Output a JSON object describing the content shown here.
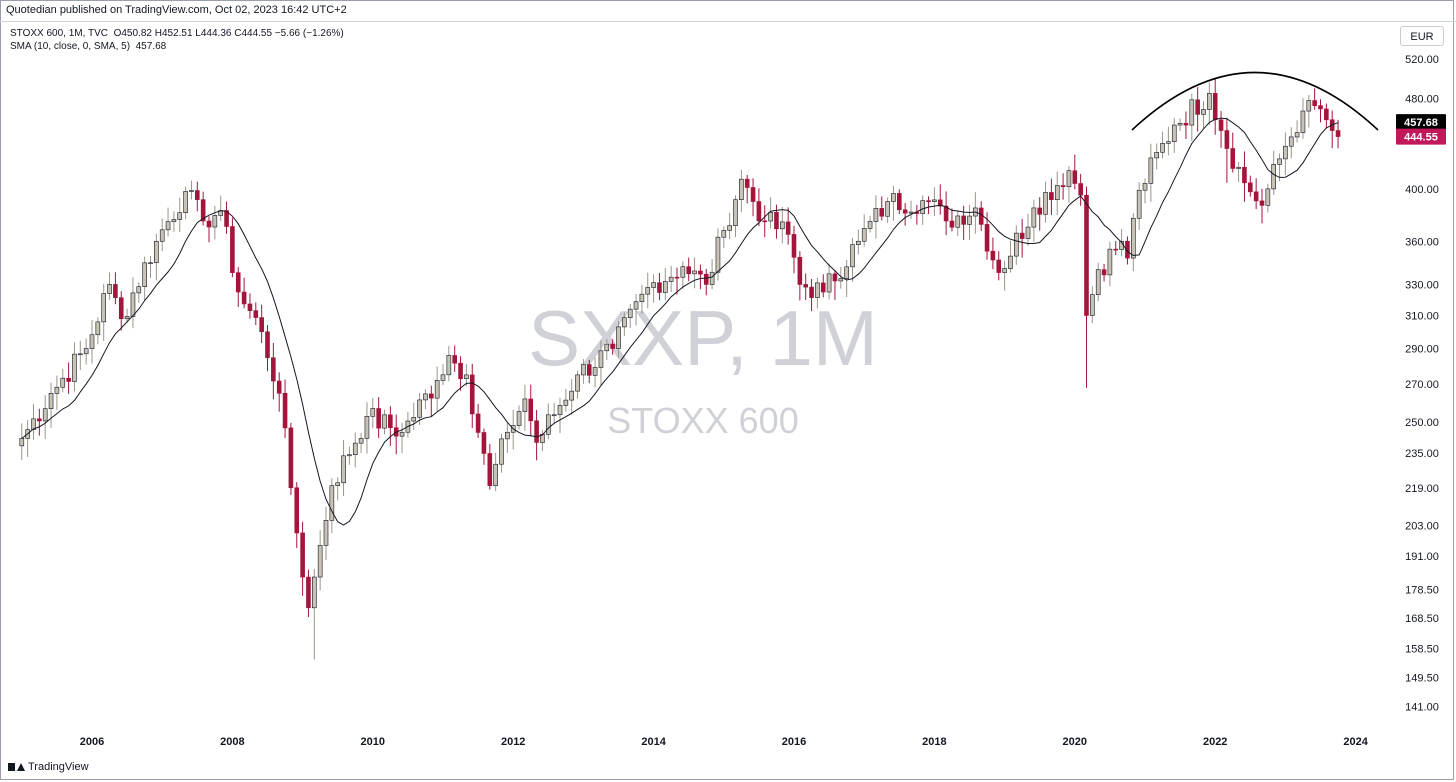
{
  "header": {
    "publisher": "Quotedian published on TradingView.com, Oct 02, 2023 16:42 UTC+2"
  },
  "legend": {
    "symbol_line": "STOXX 600, 1M, TVC",
    "ohlc": "O450.82  H452.51  L444.36  C444.55  −5.66 (−1.26%)",
    "sma_label": "SMA (10, close, 0, SMA, 5)",
    "sma_value": "457.68"
  },
  "currency_button": "EUR",
  "footer": {
    "brand": "TradingView"
  },
  "colors": {
    "up_fill": "#c9c3b6",
    "down_fill": "#a3153b",
    "wick_up": "#9b9588",
    "wick_down": "#a3153b",
    "sma": "#131722",
    "sma_badge": "#000000",
    "price_badge": "#c2185b",
    "watermark": "#cfd1d6"
  },
  "chart_data": {
    "type": "candlestick",
    "title": "SXXP, 1M",
    "subtitle": "STOXX 600",
    "scale": "log",
    "ylim": [
      135,
      560
    ],
    "y_ticks": [
      "520.00",
      "480.00",
      "400.00",
      "360.00",
      "330.00",
      "310.00",
      "290.00",
      "270.00",
      "250.00",
      "235.00",
      "219.00",
      "203.00",
      "191.00",
      "178.50",
      "168.50",
      "158.50",
      "149.50",
      "141.00"
    ],
    "x_ticks": [
      "2006",
      "2008",
      "2010",
      "2012",
      "2014",
      "2016",
      "2018",
      "2020",
      "2022",
      "2024"
    ],
    "last_sma": "457.68",
    "last_close": "444.55",
    "annotation": "arc drawn over 2021–2023 highs",
    "monthly_close_waypoints": [
      [
        "2005-01",
        242
      ],
      [
        "2005-06",
        265
      ],
      [
        "2005-12",
        290
      ],
      [
        "2006-04",
        330
      ],
      [
        "2006-06",
        308
      ],
      [
        "2006-12",
        360
      ],
      [
        "2007-05",
        398
      ],
      [
        "2007-08",
        375
      ],
      [
        "2007-11",
        383
      ],
      [
        "2008-02",
        325
      ],
      [
        "2008-06",
        300
      ],
      [
        "2008-09",
        265
      ],
      [
        "2008-12",
        200
      ],
      [
        "2009-02",
        172
      ],
      [
        "2009-03",
        183
      ],
      [
        "2009-06",
        220
      ],
      [
        "2009-12",
        253
      ],
      [
        "2010-06",
        245
      ],
      [
        "2010-12",
        272
      ],
      [
        "2011-02",
        286
      ],
      [
        "2011-05",
        275
      ],
      [
        "2011-09",
        220
      ],
      [
        "2011-12",
        245
      ],
      [
        "2012-03",
        262
      ],
      [
        "2012-05",
        240
      ],
      [
        "2012-12",
        275
      ],
      [
        "2013-06",
        290
      ],
      [
        "2013-12",
        328
      ],
      [
        "2014-06",
        342
      ],
      [
        "2014-10",
        330
      ],
      [
        "2015-01",
        368
      ],
      [
        "2015-04",
        408
      ],
      [
        "2015-08",
        375
      ],
      [
        "2015-12",
        365
      ],
      [
        "2016-02",
        330
      ],
      [
        "2016-06",
        325
      ],
      [
        "2016-12",
        360
      ],
      [
        "2017-05",
        390
      ],
      [
        "2017-12",
        390
      ],
      [
        "2018-03",
        375
      ],
      [
        "2018-08",
        385
      ],
      [
        "2018-12",
        338
      ],
      [
        "2019-06",
        385
      ],
      [
        "2019-12",
        415
      ],
      [
        "2020-02",
        395
      ],
      [
        "2020-03",
        310
      ],
      [
        "2020-05",
        340
      ],
      [
        "2020-09",
        360
      ],
      [
        "2020-10",
        348
      ],
      [
        "2020-12",
        399
      ],
      [
        "2021-06",
        455
      ],
      [
        "2021-12",
        485
      ],
      [
        "2022-02",
        450
      ],
      [
        "2022-06",
        405
      ],
      [
        "2022-09",
        387
      ],
      [
        "2022-12",
        425
      ],
      [
        "2023-04",
        468
      ],
      [
        "2023-07",
        470
      ],
      [
        "2023-09",
        450
      ],
      [
        "2023-10",
        444.55
      ]
    ]
  }
}
